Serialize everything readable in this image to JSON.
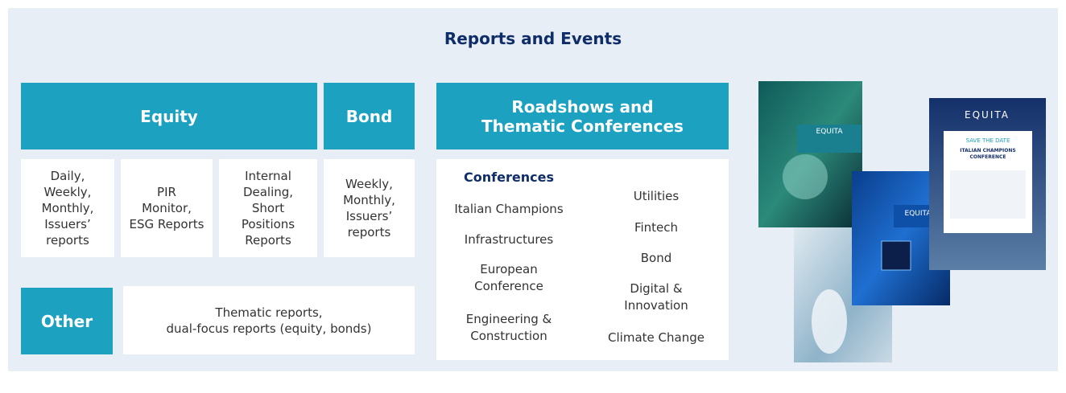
{
  "title": "Reports and Events",
  "equity": {
    "header": "Equity",
    "items": [
      "Daily,\nWeekly,\nMonthly,\nIssuers’\nreports",
      "PIR\nMonitor,\nESG Reports",
      "Internal\nDealing,\nShort\nPositions\nReports"
    ]
  },
  "bond": {
    "header": "Bond",
    "items": [
      "Weekly,\nMonthly,\nIssuers’\nreports"
    ]
  },
  "roadshows": {
    "header": "Roadshows and\nThematic Conferences",
    "conferences_label": "Conferences",
    "left": [
      "Italian Champions",
      "Infrastructures",
      "European\nConference",
      "Engineering &\nConstruction"
    ],
    "right": [
      "Utilities",
      "Fintech",
      "Bond",
      "Digital &\nInnovation",
      "Climate Change"
    ]
  },
  "other": {
    "header": "Other",
    "text": "Thematic reports,\ndual-focus reports (equity, bonds)"
  },
  "thumbnails": {
    "brand": [
      "EQUITA",
      "EQUITA",
      "EQUITA"
    ],
    "save_the_date": "SAVE THE DATE",
    "event": "ITALIAN CHAMPIONS\nCONFERENCE"
  }
}
